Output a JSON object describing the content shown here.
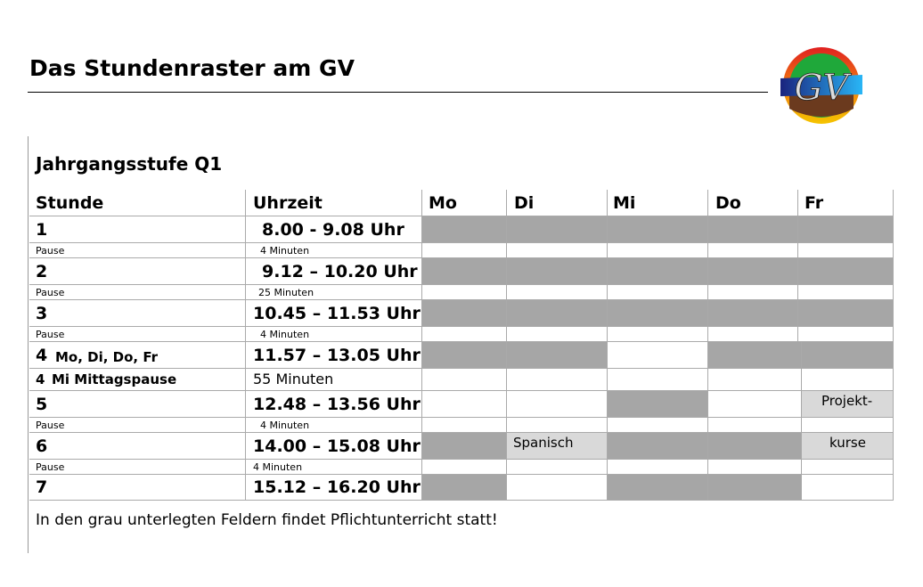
{
  "title": "Das Stundenraster am GV",
  "logo_text": "GV",
  "subtitle": "Jahrgangsstufe Q1",
  "headers": {
    "stunde": "Stunde",
    "uhrzeit": "Uhrzeit",
    "days": [
      "Mo",
      "Di",
      "Mi",
      "Do",
      "Fr"
    ]
  },
  "rows": {
    "r1": {
      "label": "1",
      "time": "8.00 - 9.08 Uhr"
    },
    "p1": {
      "label": "Pause",
      "time": "4 Minuten"
    },
    "r2": {
      "label": "2",
      "time": "9.12 – 10.20 Uhr"
    },
    "p2": {
      "label": "Pause",
      "time": "25 Minuten"
    },
    "r3": {
      "label": "3",
      "time": "10.45 – 11.53 Uhr"
    },
    "p3": {
      "label": "Pause",
      "time": "4 Minuten"
    },
    "r4": {
      "label_num": "4",
      "label_days": "Mo, Di, Do, Fr",
      "time": "11.57 – 13.05 Uhr"
    },
    "r4mi": {
      "label_num": "4",
      "label_text": "Mi Mittagspause",
      "time": "55 Minuten"
    },
    "r5": {
      "label": "5",
      "time": "12.48 – 13.56 Uhr"
    },
    "p5": {
      "label": "Pause",
      "time": "4 Minuten"
    },
    "r6": {
      "label": "6",
      "time": "14.00 – 15.08 Uhr"
    },
    "p6": {
      "label": "Pause",
      "time": "4 Minuten"
    },
    "r7": {
      "label": "7",
      "time": "15.12 – 16.20 Uhr"
    }
  },
  "cell_notes": {
    "projekt": "Projekt-",
    "kurse": "kurse",
    "spanisch": "Spanisch"
  },
  "footnote": "In den grau unterlegten Feldern findet Pflichtunterricht statt!",
  "colors": {
    "required": "#a6a6a6",
    "optional": "#d9d9d9"
  }
}
